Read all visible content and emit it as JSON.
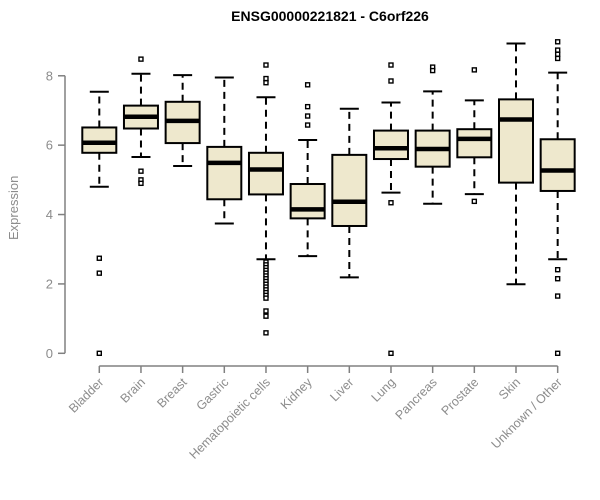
{
  "chart_data": {
    "type": "boxplot",
    "title": "ENSG00000221821 - C6orf226",
    "ylabel": "Expression",
    "xlabel": "",
    "ylim": [
      0,
      9.1
    ],
    "yticks": [
      0,
      2,
      4,
      6,
      8
    ],
    "grid": false,
    "legend": "none",
    "categories": [
      "Bladder",
      "Brain",
      "Breast",
      "Gastric",
      "Hematopoietic cells",
      "Kidney",
      "Liver",
      "Lung",
      "Pancreas",
      "Prostate",
      "Skin",
      "Unknown / Other"
    ],
    "series": [
      {
        "category": "Bladder",
        "whisker_low": 4.8,
        "q1": 5.78,
        "median": 6.07,
        "q3": 6.51,
        "whisker_high": 7.54,
        "outliers": [
          2.74,
          2.31,
          0.0
        ]
      },
      {
        "category": "Brain",
        "whisker_low": 5.66,
        "q1": 6.48,
        "median": 6.82,
        "q3": 7.14,
        "whisker_high": 8.06,
        "outliers": [
          8.48,
          5.25,
          5.0,
          4.9
        ]
      },
      {
        "category": "Breast",
        "whisker_low": 5.4,
        "q1": 6.06,
        "median": 6.7,
        "q3": 7.25,
        "whisker_high": 8.02,
        "outliers": []
      },
      {
        "category": "Gastric",
        "whisker_low": 3.74,
        "q1": 4.44,
        "median": 5.49,
        "q3": 5.95,
        "whisker_high": 7.95,
        "outliers": []
      },
      {
        "category": "Hematopoietic cells",
        "whisker_low": 2.71,
        "q1": 4.58,
        "median": 5.3,
        "q3": 5.78,
        "whisker_high": 7.38,
        "outliers": [
          8.31,
          7.92,
          7.8,
          2.63,
          2.55,
          2.47,
          2.39,
          2.31,
          2.23,
          2.15,
          2.07,
          1.99,
          1.91,
          1.83,
          1.75,
          1.67,
          1.59,
          1.22,
          1.07,
          0.59
        ]
      },
      {
        "category": "Kidney",
        "whisker_low": 2.8,
        "q1": 3.89,
        "median": 4.15,
        "q3": 4.88,
        "whisker_high": 6.15,
        "outliers": [
          7.74,
          7.11,
          6.84,
          6.58
        ]
      },
      {
        "category": "Liver",
        "whisker_low": 2.19,
        "q1": 3.67,
        "median": 4.37,
        "q3": 5.72,
        "whisker_high": 7.05,
        "outliers": []
      },
      {
        "category": "Lung",
        "whisker_low": 4.63,
        "q1": 5.6,
        "median": 5.91,
        "q3": 6.42,
        "whisker_high": 7.23,
        "outliers": [
          8.31,
          7.85,
          4.34,
          0.0
        ]
      },
      {
        "category": "Pancreas",
        "whisker_low": 4.31,
        "q1": 5.38,
        "median": 5.89,
        "q3": 6.42,
        "whisker_high": 7.55,
        "outliers": [
          8.25,
          8.15
        ]
      },
      {
        "category": "Prostate",
        "whisker_low": 4.59,
        "q1": 5.65,
        "median": 6.18,
        "q3": 6.46,
        "whisker_high": 7.29,
        "outliers": [
          8.17,
          4.38
        ]
      },
      {
        "category": "Skin",
        "whisker_low": 1.99,
        "q1": 4.92,
        "median": 6.74,
        "q3": 7.32,
        "whisker_high": 8.93,
        "outliers": []
      },
      {
        "category": "Unknown / Other",
        "whisker_low": 2.71,
        "q1": 4.68,
        "median": 5.27,
        "q3": 6.17,
        "whisker_high": 8.09,
        "outliers": [
          8.98,
          8.74,
          8.62,
          8.5,
          2.41,
          2.15,
          1.65,
          0.0
        ]
      }
    ],
    "colors": {
      "background": "#FFFFFF",
      "box_fill": "#EEE8CD",
      "box_stroke": "#000000",
      "median": "#000000",
      "outlier": "#000000",
      "axis": "#808080",
      "tick_label": "#8C8C8C",
      "title": "#000000"
    }
  }
}
